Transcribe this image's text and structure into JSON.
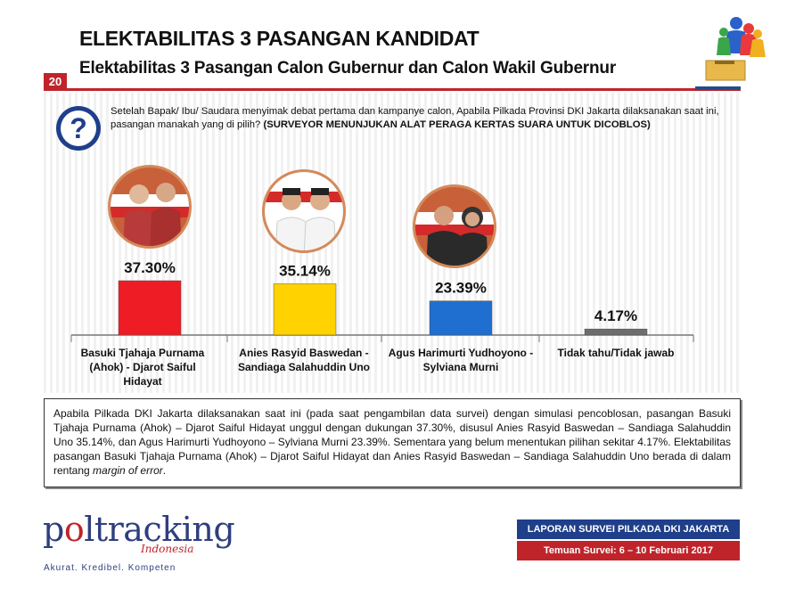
{
  "header": {
    "title": "ELEKTABILITAS 3 PASANGAN KANDIDAT",
    "subtitle": "Elektabilitas 3 Pasangan Calon Gubernur dan Calon Wakil Gubernur",
    "page_number": "20"
  },
  "question": {
    "text": "Setelah Bapak/ Ibu/ Saudara menyimak debat pertama dan kampanye calon, Apabila Pilkada Provinsi DKI Jakarta dilaksanakan saat ini, pasangan manakah yang di pilih?",
    "note": "(SURVEYOR MENUNJUKAN ALAT PERAGA KERTAS SUARA UNTUK DICOBLOS)",
    "icon": "question-mark-icon"
  },
  "chart_data": {
    "type": "bar",
    "categories": [
      "Basuki Tjahaja Purnama (Ahok) - Djarot Saiful Hidayat",
      "Anies Rasyid Baswedan - Sandiaga Salahuddin Uno",
      "Agus Harimurti Yudhoyono - Sylviana Murni",
      "Tidak tahu/Tidak jawab"
    ],
    "values": [
      37.3,
      35.14,
      23.39,
      4.17
    ],
    "value_labels": [
      "37.30%",
      "35.14%",
      "23.39%",
      "4.17%"
    ],
    "colors": [
      "#ee1c24",
      "#ffd200",
      "#1f6fd0",
      "#6d6d6d"
    ],
    "ylim": [
      0,
      40
    ],
    "grid": false
  },
  "labels": {
    "c1": [
      "Basuki Tjahaja Purnama",
      "(Ahok) - Djarot Saiful",
      "Hidayat"
    ],
    "c2": [
      "Anies Rasyid Baswedan -",
      "Sandiaga Salahuddin Uno"
    ],
    "c3": [
      "Agus Harimurti Yudhoyono -",
      "Sylviana Murni"
    ],
    "c4": [
      "Tidak tahu/Tidak jawab"
    ]
  },
  "summary": {
    "text": "Apabila Pilkada DKI Jakarta dilaksanakan saat ini (pada saat pengambilan data survei) dengan simulasi pencoblosan, pasangan Basuki Tjahaja Purnama (Ahok) – Djarot Saiful Hidayat unggul dengan dukungan 37.30%, disusul Anies Rasyid Baswedan – Sandiaga Salahuddin Uno 35.14%, dan Agus Harimurti Yudhoyono – Sylviana Murni 23.39%. Sementara yang belum menentukan pilihan sekitar 4.17%. Elektabilitas pasangan Basuki Tjahaja Purnama (Ahok) – Djarot Saiful Hidayat dan Anies Rasyid Baswedan – Sandiaga Salahuddin Uno berada di dalam rentang",
    "emphasis": "margin of error",
    "end": "."
  },
  "footer": {
    "brand_left": "p",
    "brand_right": "ltracking",
    "brand_sub": "Indonesia",
    "tagline": "Akurat. Kredibel. Kompeten",
    "report_title": "LAPORAN SURVEI PILKADA DKI JAKARTA",
    "report_dates": "Temuan Survei: 6 – 10 Februari 2017"
  }
}
